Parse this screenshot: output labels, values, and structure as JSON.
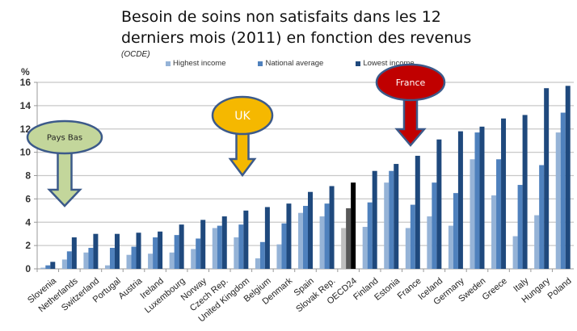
{
  "title": "Besoin de soins non satisfaits dans les 12 derniers mois (2011) en fonction des revenus",
  "title_line1": "Besoin de soins non satisfaits dans les 12",
  "title_line2": "derniers mois (2011) en fonction des revenus",
  "subtitle": "(OCDE)",
  "y_unit": "%",
  "legend": [
    {
      "label": "Highest income",
      "color": "#95b3d7"
    },
    {
      "label": "National average",
      "color": "#4f81bd"
    },
    {
      "label": "Lowest income",
      "color": "#1f497d"
    }
  ],
  "annotations": [
    {
      "label": "Pays Bas",
      "fill": "#c3d69b",
      "stroke": "#3c5a8a",
      "text_color": "#222222"
    },
    {
      "label": "UK",
      "fill": "#f5b800",
      "stroke": "#3c5a8a",
      "text_color": "#ffffff"
    },
    {
      "label": "France",
      "fill": "#c00000",
      "stroke": "#3c5a8a",
      "text_color": "#ffffff"
    }
  ],
  "chart_data": {
    "type": "bar",
    "title": "Besoin de soins non satisfaits dans les 12 derniers mois (2011) en fonction des revenus",
    "subtitle": "(OCDE)",
    "xlabel": "",
    "ylabel": "%",
    "ylim": [
      0,
      16
    ],
    "yticks": [
      0,
      2,
      4,
      6,
      8,
      10,
      12,
      14,
      16
    ],
    "grid": true,
    "legend_position": "top",
    "categories": [
      "Slovenia",
      "Netherlands",
      "Switzerland",
      "Portugal",
      "Austria",
      "Ireland",
      "Luxembourg",
      "Norway",
      "Czech Rep.",
      "United Kingdom",
      "Belgium",
      "Denmark",
      "Spain",
      "Slovak Rep.",
      "OECD24",
      "Finland",
      "Estonia",
      "France",
      "Iceland",
      "Germany",
      "Sweden",
      "Greece",
      "Italy",
      "Hungary",
      "Poland"
    ],
    "series": [
      {
        "name": "Highest income",
        "color": "#95b3d7",
        "values": [
          0.1,
          0.8,
          1.4,
          0.3,
          1.2,
          1.3,
          1.4,
          1.7,
          3.5,
          2.7,
          0.9,
          2.1,
          4.8,
          4.5,
          3.5,
          3.6,
          7.4,
          3.5,
          4.5,
          3.7,
          9.4,
          6.3,
          2.8,
          4.6,
          11.7
        ]
      },
      {
        "name": "National average",
        "color": "#4f81bd",
        "values": [
          0.3,
          1.5,
          1.8,
          1.8,
          1.9,
          2.7,
          2.9,
          2.6,
          3.7,
          3.8,
          2.3,
          3.9,
          5.4,
          5.6,
          5.2,
          5.7,
          8.4,
          5.5,
          7.4,
          6.5,
          11.7,
          9.4,
          7.2,
          8.9,
          13.4
        ]
      },
      {
        "name": "Lowest income",
        "color": "#1f497d",
        "values": [
          0.6,
          2.7,
          3.0,
          3.0,
          3.1,
          3.2,
          3.8,
          4.2,
          4.5,
          5.0,
          5.3,
          5.6,
          6.6,
          7.1,
          7.4,
          8.4,
          9.0,
          9.7,
          11.1,
          11.8,
          12.2,
          12.9,
          13.2,
          15.5,
          15.7
        ]
      }
    ],
    "highlight": {
      "category": "OECD24",
      "colors": [
        "#bfbfbf",
        "#595959",
        "#000000"
      ]
    },
    "annotations": [
      {
        "label": "Pays Bas",
        "points_to": "Netherlands"
      },
      {
        "label": "UK",
        "points_to": "United Kingdom"
      },
      {
        "label": "France",
        "points_to": "France"
      }
    ]
  }
}
